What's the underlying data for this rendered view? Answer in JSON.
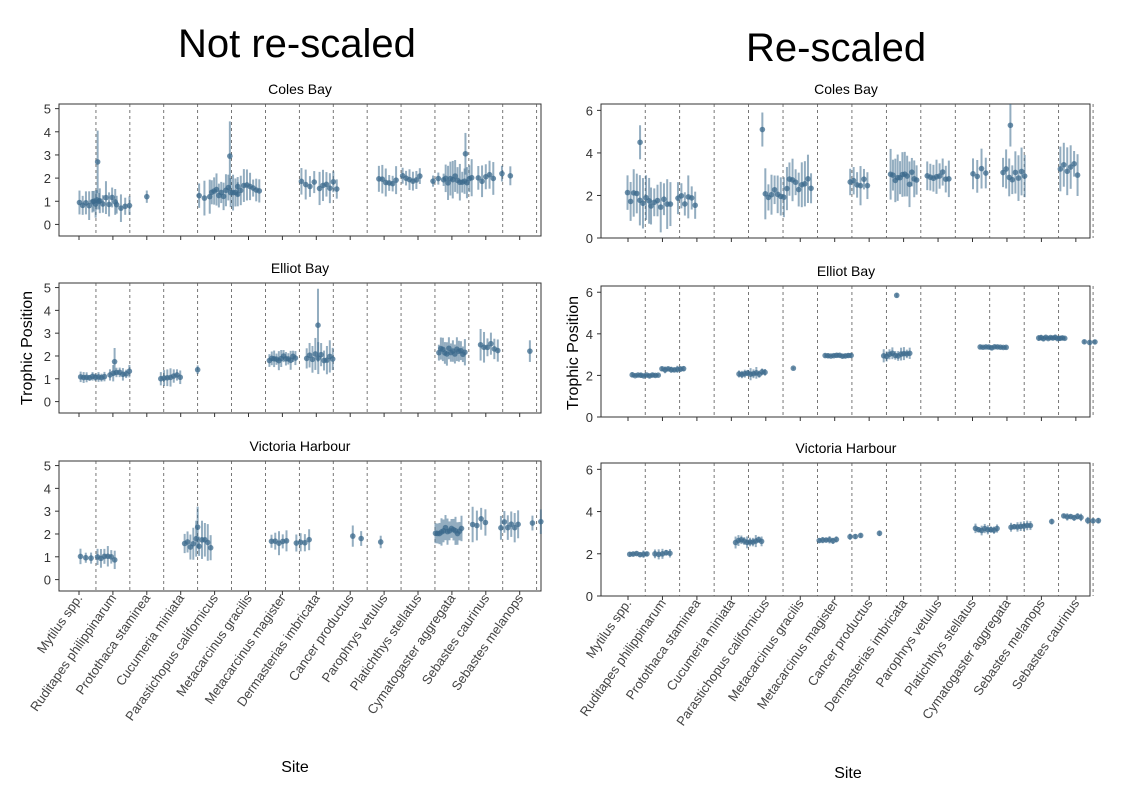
{
  "figure": {
    "left_title": "Not re-scaled",
    "right_title": "Re-scaled",
    "ylabel": "Trophic Position",
    "xlabel": "Site"
  },
  "colors": {
    "point": "#3b6a8c",
    "frame": "#333333",
    "vline": "#555555"
  },
  "chart_data": [
    {
      "type": "scatter",
      "name_role": "not-rescaled",
      "title": "Not re-scaled",
      "xlabel": "Site",
      "ylabel": "Trophic Position",
      "x_ticks": [
        "Mytilus spp.",
        "Ruditapes philippinarum",
        "Protothaca staminea",
        "Cucumeria miniata",
        "Parastichopus californicus",
        "Metacarcinus gracilis",
        "Metacarcinus magister",
        "Dermasterias imbricata",
        "Cancer productus",
        "Parophrys vetulus",
        "Platichthys stellatus",
        "Cymatogaster aggregata",
        "Sebastes caurinus",
        "Sebastes melanops"
      ],
      "ylim": [
        -0.5,
        5.2
      ],
      "y_ticks": [
        0,
        1,
        2,
        3,
        4,
        5
      ],
      "grid": false,
      "panels": [
        {
          "title": "Coles Bay",
          "clusters": [
            {
              "c": 0.3,
              "n": 7,
              "y": 0.95,
              "e": 0.55
            },
            {
              "c": 0.75,
              "n": 8,
              "y": 1.0,
              "e": 0.6
            },
            {
              "c": 1.3,
              "n": 4,
              "y": 0.8,
              "e": 0.5
            },
            {
              "c": 2.0,
              "n": 1,
              "y": 1.25,
              "e": 0.25
            },
            {
              "c": 3.7,
              "n": 3,
              "y": 1.3,
              "e": 0.65
            },
            {
              "c": 4.3,
              "n": 12,
              "y": 1.4,
              "e": 0.7
            },
            {
              "c": 5.0,
              "n": 8,
              "y": 1.55,
              "e": 0.6
            },
            {
              "c": 6.75,
              "n": 4,
              "y": 1.8,
              "e": 0.55
            },
            {
              "c": 7.35,
              "n": 6,
              "y": 1.7,
              "e": 0.6
            },
            {
              "c": 9.1,
              "n": 6,
              "y": 1.9,
              "e": 0.55
            },
            {
              "c": 9.8,
              "n": 6,
              "y": 2.0,
              "e": 0.5
            },
            {
              "c": 10.6,
              "n": 3,
              "y": 1.95,
              "e": 0.4
            },
            {
              "c": 11.2,
              "n": 12,
              "y": 2.0,
              "e": 0.7
            },
            {
              "c": 12.0,
              "n": 5,
              "y": 2.0,
              "e": 0.6
            },
            {
              "c": 12.6,
              "n": 2,
              "y": 2.1,
              "e": 0.4
            }
          ],
          "outliers": [
            {
              "x": 0.55,
              "y": 2.7,
              "e": 1.35
            },
            {
              "x": 4.45,
              "y": 2.95,
              "e": 1.5
            },
            {
              "x": 11.4,
              "y": 3.05,
              "e": 0.9
            }
          ]
        },
        {
          "title": "Elliot Bay",
          "clusters": [
            {
              "c": 0.4,
              "n": 9,
              "y": 1.05,
              "e": 0.2
            },
            {
              "c": 1.2,
              "n": 7,
              "y": 1.25,
              "e": 0.3
            },
            {
              "c": 2.7,
              "n": 7,
              "y": 1.1,
              "e": 0.35
            },
            {
              "c": 3.5,
              "n": 1,
              "y": 1.35,
              "e": 0.2
            },
            {
              "c": 6.0,
              "n": 12,
              "y": 1.9,
              "e": 0.4
            },
            {
              "c": 7.1,
              "n": 10,
              "y": 1.95,
              "e": 0.6
            },
            {
              "c": 11.0,
              "n": 14,
              "y": 2.2,
              "e": 0.5
            },
            {
              "c": 12.1,
              "n": 6,
              "y": 2.4,
              "e": 0.6
            },
            {
              "c": 13.3,
              "n": 1,
              "y": 2.25,
              "e": 0.4
            }
          ],
          "outliers": [
            {
              "x": 7.05,
              "y": 3.35,
              "e": 1.6
            },
            {
              "x": 1.05,
              "y": 1.75,
              "e": 0.6
            }
          ]
        },
        {
          "title": "Victoria Harbour",
          "clusters": [
            {
              "c": 0.2,
              "n": 3,
              "y": 0.95,
              "e": 0.35
            },
            {
              "c": 0.8,
              "n": 6,
              "y": 1.0,
              "e": 0.45
            },
            {
              "c": 3.5,
              "n": 10,
              "y": 1.6,
              "e": 0.7
            },
            {
              "c": 5.9,
              "n": 5,
              "y": 1.65,
              "e": 0.45
            },
            {
              "c": 6.6,
              "n": 4,
              "y": 1.75,
              "e": 0.5
            },
            {
              "c": 8.2,
              "n": 2,
              "y": 1.9,
              "e": 0.4
            },
            {
              "c": 8.9,
              "n": 1,
              "y": 1.75,
              "e": 0.4
            },
            {
              "c": 10.9,
              "n": 14,
              "y": 2.15,
              "e": 0.55
            },
            {
              "c": 11.8,
              "n": 4,
              "y": 2.55,
              "e": 0.75
            },
            {
              "c": 12.7,
              "n": 6,
              "y": 2.45,
              "e": 0.6
            },
            {
              "c": 13.5,
              "n": 2,
              "y": 2.4,
              "e": 0.5
            }
          ],
          "outliers": [
            {
              "x": 3.5,
              "y": 2.3,
              "e": 0.9
            }
          ]
        }
      ]
    },
    {
      "type": "scatter",
      "name_role": "rescaled",
      "title": "Re-scaled",
      "xlabel": "Site",
      "ylabel": "Trophic Position",
      "x_ticks": [
        "Mytilus spp.",
        "Ruditapes philippinarum",
        "Protothaca staminea",
        "Cucumeria miniata",
        "Parastichopus californicus",
        "Metacarcinus gracilis",
        "Metacarcinus magister",
        "Cancer productus",
        "Dermasterias imbricata",
        "Parophrys vetulus",
        "Platichthys stellatus",
        "Cymatogaster aggregata",
        "Sebastes melanops",
        "Sebastes caurinus"
      ],
      "ylim": [
        0,
        6.3
      ],
      "y_ticks": [
        0,
        2,
        4,
        6
      ],
      "grid": false,
      "panels": [
        {
          "title": "Coles Bay",
          "clusters": [
            {
              "c": 0.3,
              "n": 8,
              "y": 1.85,
              "e": 1.1
            },
            {
              "c": 0.95,
              "n": 7,
              "y": 1.75,
              "e": 1.0
            },
            {
              "c": 1.7,
              "n": 6,
              "y": 1.8,
              "e": 0.9
            },
            {
              "c": 4.3,
              "n": 8,
              "y": 2.2,
              "e": 1.0
            },
            {
              "c": 5.0,
              "n": 8,
              "y": 2.5,
              "e": 1.0
            },
            {
              "c": 6.7,
              "n": 6,
              "y": 2.55,
              "e": 0.8
            },
            {
              "c": 8.0,
              "n": 12,
              "y": 2.8,
              "e": 1.0
            },
            {
              "c": 9.0,
              "n": 8,
              "y": 3.0,
              "e": 0.9
            },
            {
              "c": 10.2,
              "n": 4,
              "y": 3.1,
              "e": 0.8
            },
            {
              "c": 11.2,
              "n": 8,
              "y": 3.0,
              "e": 1.0
            },
            {
              "c": 12.8,
              "n": 6,
              "y": 3.2,
              "e": 1.0
            }
          ],
          "outliers": [
            {
              "x": 0.35,
              "y": 4.5,
              "e": 0.8
            },
            {
              "x": 3.9,
              "y": 5.1,
              "e": 0.8
            },
            {
              "x": 11.1,
              "y": 5.3,
              "e": 1.0
            }
          ]
        },
        {
          "title": "Elliot Bay",
          "clusters": [
            {
              "c": 0.5,
              "n": 10,
              "y": 2.0,
              "e": 0.1
            },
            {
              "c": 1.3,
              "n": 8,
              "y": 2.3,
              "e": 0.15
            },
            {
              "c": 3.6,
              "n": 10,
              "y": 2.1,
              "e": 0.25
            },
            {
              "c": 4.8,
              "n": 1,
              "y": 2.35,
              "e": 0.1
            },
            {
              "c": 6.1,
              "n": 10,
              "y": 2.95,
              "e": 0.1
            },
            {
              "c": 7.8,
              "n": 10,
              "y": 3.0,
              "e": 0.3
            },
            {
              "c": 10.6,
              "n": 10,
              "y": 3.35,
              "e": 0.1
            },
            {
              "c": 12.3,
              "n": 12,
              "y": 3.8,
              "e": 0.12
            },
            {
              "c": 13.4,
              "n": 3,
              "y": 3.6,
              "e": 0.1
            }
          ],
          "outliers": [
            {
              "x": 7.8,
              "y": 5.85,
              "e": 0.1
            }
          ]
        },
        {
          "title": "Victoria Harbour",
          "clusters": [
            {
              "c": 0.3,
              "n": 6,
              "y": 2.0,
              "e": 0.15
            },
            {
              "c": 1.0,
              "n": 5,
              "y": 2.0,
              "e": 0.2
            },
            {
              "c": 3.5,
              "n": 10,
              "y": 2.6,
              "e": 0.25
            },
            {
              "c": 5.8,
              "n": 6,
              "y": 2.65,
              "e": 0.15
            },
            {
              "c": 6.6,
              "n": 3,
              "y": 2.85,
              "e": 0.15
            },
            {
              "c": 7.3,
              "n": 1,
              "y": 2.95,
              "e": 0.15
            },
            {
              "c": 10.4,
              "n": 8,
              "y": 3.15,
              "e": 0.2
            },
            {
              "c": 11.4,
              "n": 7,
              "y": 3.3,
              "e": 0.2
            },
            {
              "c": 12.3,
              "n": 1,
              "y": 3.55,
              "e": 0.15
            },
            {
              "c": 12.9,
              "n": 6,
              "y": 3.75,
              "e": 0.15
            },
            {
              "c": 13.5,
              "n": 3,
              "y": 3.6,
              "e": 0.15
            }
          ],
          "outliers": []
        }
      ]
    }
  ]
}
